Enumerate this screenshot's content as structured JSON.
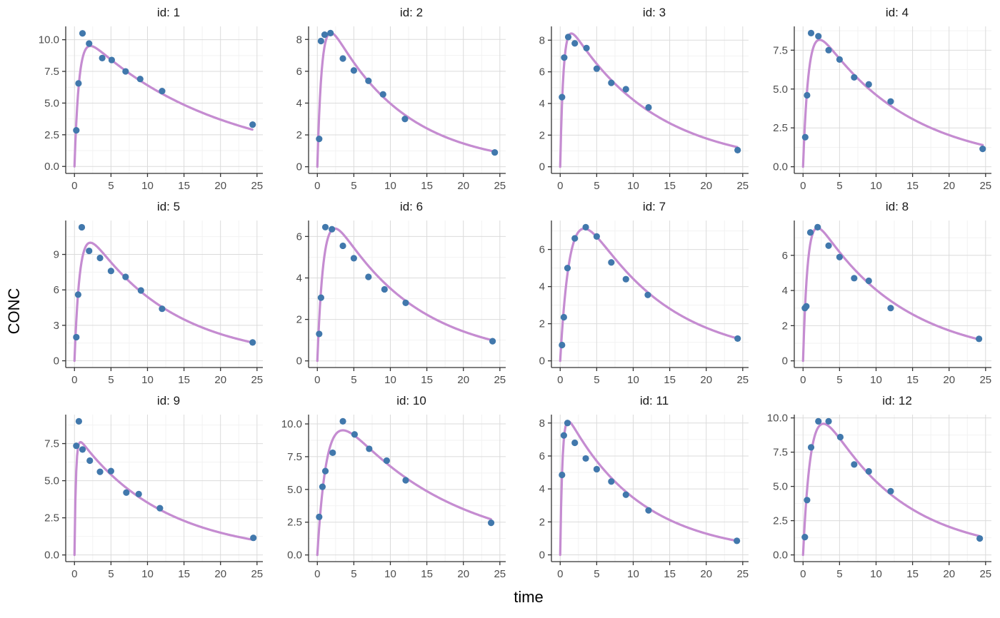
{
  "figure": {
    "ylabel": "CONC",
    "xlabel": "time"
  },
  "style": {
    "background": "#FFFFFF",
    "point_color": "#4178AC",
    "line_color": "#C58CD1",
    "grid_major": "#DBDBDB",
    "grid_minor": "#F2F2F2",
    "axis_color": "#333333",
    "tick_label_color": "#4D4D4D",
    "title_color": "#1A1A1A"
  },
  "axes": {
    "xticks": [
      0,
      5,
      10,
      15,
      20,
      25
    ],
    "xtick_labels": [
      "0",
      "5",
      "10",
      "15",
      "20",
      "25"
    ],
    "xminor": [
      2.5,
      7.5,
      12.5,
      17.5,
      22.5
    ],
    "xlim": [
      -1.2,
      25.8
    ]
  },
  "chart_data": [
    {
      "type": "scatter+line",
      "title": "id: 1",
      "x": [
        0.25,
        0.55,
        1.1,
        2,
        3.8,
        5.1,
        7,
        9,
        12,
        24.4
      ],
      "y": [
        2.85,
        6.55,
        10.5,
        9.7,
        8.55,
        8.4,
        7.5,
        6.9,
        5.95,
        3.3
      ],
      "curve": {
        "A": 11.1,
        "ka": 1.6,
        "ke": 0.055,
        "t_end": 24.4
      },
      "yticks": [
        0,
        2.5,
        5,
        7.5,
        10
      ],
      "ytick_labels": [
        "0.0",
        "2.5",
        "5.0",
        "7.5",
        "10.0"
      ],
      "ylim": [
        -0.55,
        11.05
      ]
    },
    {
      "type": "scatter+line",
      "title": "id: 2",
      "x": [
        0.25,
        0.5,
        1,
        1.8,
        3.5,
        5,
        7,
        9,
        12,
        24.3
      ],
      "y": [
        1.75,
        7.9,
        8.3,
        8.4,
        6.8,
        6.05,
        5.4,
        4.55,
        3.0,
        0.9
      ],
      "curve": {
        "A": 10.8,
        "ka": 1.6,
        "ke": 0.1,
        "t_end": 24.3
      },
      "yticks": [
        0,
        2,
        4,
        6,
        8
      ],
      "ytick_labels": [
        "0",
        "2",
        "4",
        "6",
        "8"
      ],
      "ylim": [
        -0.42,
        8.82
      ]
    },
    {
      "type": "scatter+line",
      "title": "id: 3",
      "x": [
        0.25,
        0.55,
        1.1,
        2,
        3.6,
        5,
        7,
        9,
        12.1,
        24.3
      ],
      "y": [
        4.4,
        6.9,
        8.2,
        7.8,
        7.5,
        6.2,
        5.3,
        4.9,
        3.75,
        1.05
      ],
      "curve": {
        "A": 10.0,
        "ka": 2.2,
        "ke": 0.086,
        "t_end": 24.3
      },
      "yticks": [
        0,
        2,
        4,
        6,
        8
      ],
      "ytick_labels": [
        "0",
        "2",
        "4",
        "6",
        "8"
      ],
      "ylim": [
        -0.42,
        8.87
      ]
    },
    {
      "type": "scatter+line",
      "title": "id: 4",
      "x": [
        0.3,
        0.55,
        1.1,
        2.1,
        3.5,
        5,
        7,
        9,
        12,
        24.6
      ],
      "y": [
        1.9,
        4.6,
        8.6,
        8.4,
        7.5,
        6.9,
        5.75,
        5.3,
        4.2,
        1.15
      ],
      "curve": {
        "A": 10.5,
        "ka": 1.3,
        "ke": 0.082,
        "t_end": 24.6
      },
      "yticks": [
        0,
        2.5,
        5,
        7.5
      ],
      "ytick_labels": [
        "0.0",
        "2.5",
        "5.0",
        "7.5"
      ],
      "ylim": [
        -0.43,
        9.03
      ]
    },
    {
      "type": "scatter+line",
      "title": "id: 5",
      "x": [
        0.25,
        0.5,
        1,
        2,
        3.5,
        5,
        7,
        9.1,
        12,
        24.4
      ],
      "y": [
        2.0,
        5.6,
        11.3,
        9.3,
        8.7,
        7.6,
        7.1,
        5.95,
        4.4,
        1.55
      ],
      "curve": {
        "A": 12.9,
        "ka": 1.35,
        "ke": 0.087,
        "t_end": 24.4
      },
      "yticks": [
        0,
        3,
        6,
        9
      ],
      "ytick_labels": [
        "0",
        "3",
        "6",
        "9"
      ],
      "ylim": [
        -0.57,
        11.87
      ]
    },
    {
      "type": "scatter+line",
      "title": "id: 6",
      "x": [
        0.25,
        0.5,
        1.1,
        2,
        3.5,
        5,
        7,
        9.2,
        12.1,
        24.0
      ],
      "y": [
        1.3,
        3.05,
        6.45,
        6.35,
        5.55,
        4.95,
        4.05,
        3.45,
        2.8,
        0.95
      ],
      "curve": {
        "A": 8.6,
        "ka": 1.15,
        "ke": 0.09,
        "t_end": 24.0
      },
      "yticks": [
        0,
        2,
        4,
        6
      ],
      "ytick_labels": [
        "0",
        "2",
        "4",
        "6"
      ],
      "ylim": [
        -0.32,
        6.77
      ]
    },
    {
      "type": "scatter+line",
      "title": "id: 7",
      "x": [
        0.25,
        0.5,
        1,
        2,
        3.5,
        5,
        7,
        9,
        12,
        24.3
      ],
      "y": [
        0.85,
        2.35,
        5.0,
        6.6,
        7.2,
        6.7,
        5.3,
        4.4,
        3.55,
        1.2
      ],
      "curve": {
        "A": 11.0,
        "ka": 0.72,
        "ke": 0.091,
        "t_end": 24.3
      },
      "yticks": [
        0,
        2,
        4,
        6
      ],
      "ytick_labels": [
        "0",
        "2",
        "4",
        "6"
      ],
      "ylim": [
        -0.36,
        7.56
      ]
    },
    {
      "type": "scatter+line",
      "title": "id: 8",
      "x": [
        0.25,
        0.45,
        1,
        2,
        3.5,
        5,
        7,
        9,
        12,
        24.1
      ],
      "y": [
        3.0,
        3.1,
        7.3,
        7.6,
        6.55,
        5.9,
        4.7,
        4.55,
        3.0,
        1.25
      ],
      "curve": {
        "A": 9.46,
        "ka": 1.55,
        "ke": 0.085,
        "t_end": 24.1
      },
      "yticks": [
        0,
        2,
        4,
        6
      ],
      "ytick_labels": [
        "0",
        "2",
        "4",
        "6"
      ],
      "ylim": [
        -0.38,
        7.98
      ]
    },
    {
      "type": "scatter+line",
      "title": "id: 9",
      "x": [
        0.25,
        0.6,
        1.1,
        2.1,
        3.5,
        5,
        7.1,
        8.8,
        11.7,
        24.5
      ],
      "y": [
        7.35,
        9.0,
        7.1,
        6.35,
        5.6,
        5.65,
        4.2,
        4.1,
        3.15,
        1.15
      ],
      "curve": {
        "A": 8.3,
        "ka": 5.0,
        "ke": 0.0856,
        "t_end": 24.5
      },
      "yticks": [
        0,
        2.5,
        5,
        7.5
      ],
      "ytick_labels": [
        "0.0",
        "2.5",
        "5.0",
        "7.5"
      ],
      "ylim": [
        -0.45,
        9.45
      ]
    },
    {
      "type": "scatter+line",
      "title": "id: 10",
      "x": [
        0.25,
        0.7,
        1.1,
        2.1,
        3.5,
        5.1,
        7.1,
        9.5,
        12.1,
        23.8
      ],
      "y": [
        2.9,
        5.2,
        6.4,
        7.8,
        10.2,
        9.2,
        8.1,
        7.2,
        5.7,
        2.45
      ],
      "curve": {
        "A": 13.1,
        "ka": 0.77,
        "ke": 0.066,
        "t_end": 23.8
      },
      "yticks": [
        0,
        2.5,
        5,
        7.5,
        10
      ],
      "ytick_labels": [
        "0.0",
        "2.5",
        "5.0",
        "7.5",
        "10.0"
      ],
      "ylim": [
        -0.51,
        10.71
      ]
    },
    {
      "type": "scatter+line",
      "title": "id: 11",
      "x": [
        0.25,
        0.5,
        1,
        2,
        3.5,
        5,
        7,
        9,
        12.1,
        24.2
      ],
      "y": [
        4.85,
        7.25,
        8.0,
        6.8,
        5.85,
        5.2,
        4.45,
        3.65,
        2.7,
        0.85
      ],
      "curve": {
        "A": 9.34,
        "ka": 3.2,
        "ke": 0.099,
        "t_end": 24.2
      },
      "yticks": [
        0,
        2,
        4,
        6,
        8
      ],
      "ytick_labels": [
        "0",
        "2",
        "4",
        "6",
        "8"
      ],
      "ylim": [
        -0.41,
        8.51
      ]
    },
    {
      "type": "scatter+line",
      "title": "id: 12",
      "x": [
        0.25,
        0.55,
        1.1,
        2.1,
        3.5,
        5.1,
        7,
        9,
        12,
        24.2
      ],
      "y": [
        1.3,
        4.0,
        7.85,
        9.75,
        9.75,
        8.6,
        6.6,
        6.1,
        4.65,
        1.2
      ],
      "curve": {
        "A": 14.0,
        "ka": 0.9,
        "ke": 0.096,
        "t_end": 24.2
      },
      "yticks": [
        0,
        2.5,
        5,
        7.5,
        10
      ],
      "ytick_labels": [
        "0.0",
        "2.5",
        "5.0",
        "7.5",
        "10.0"
      ],
      "ylim": [
        -0.49,
        10.24
      ]
    }
  ]
}
